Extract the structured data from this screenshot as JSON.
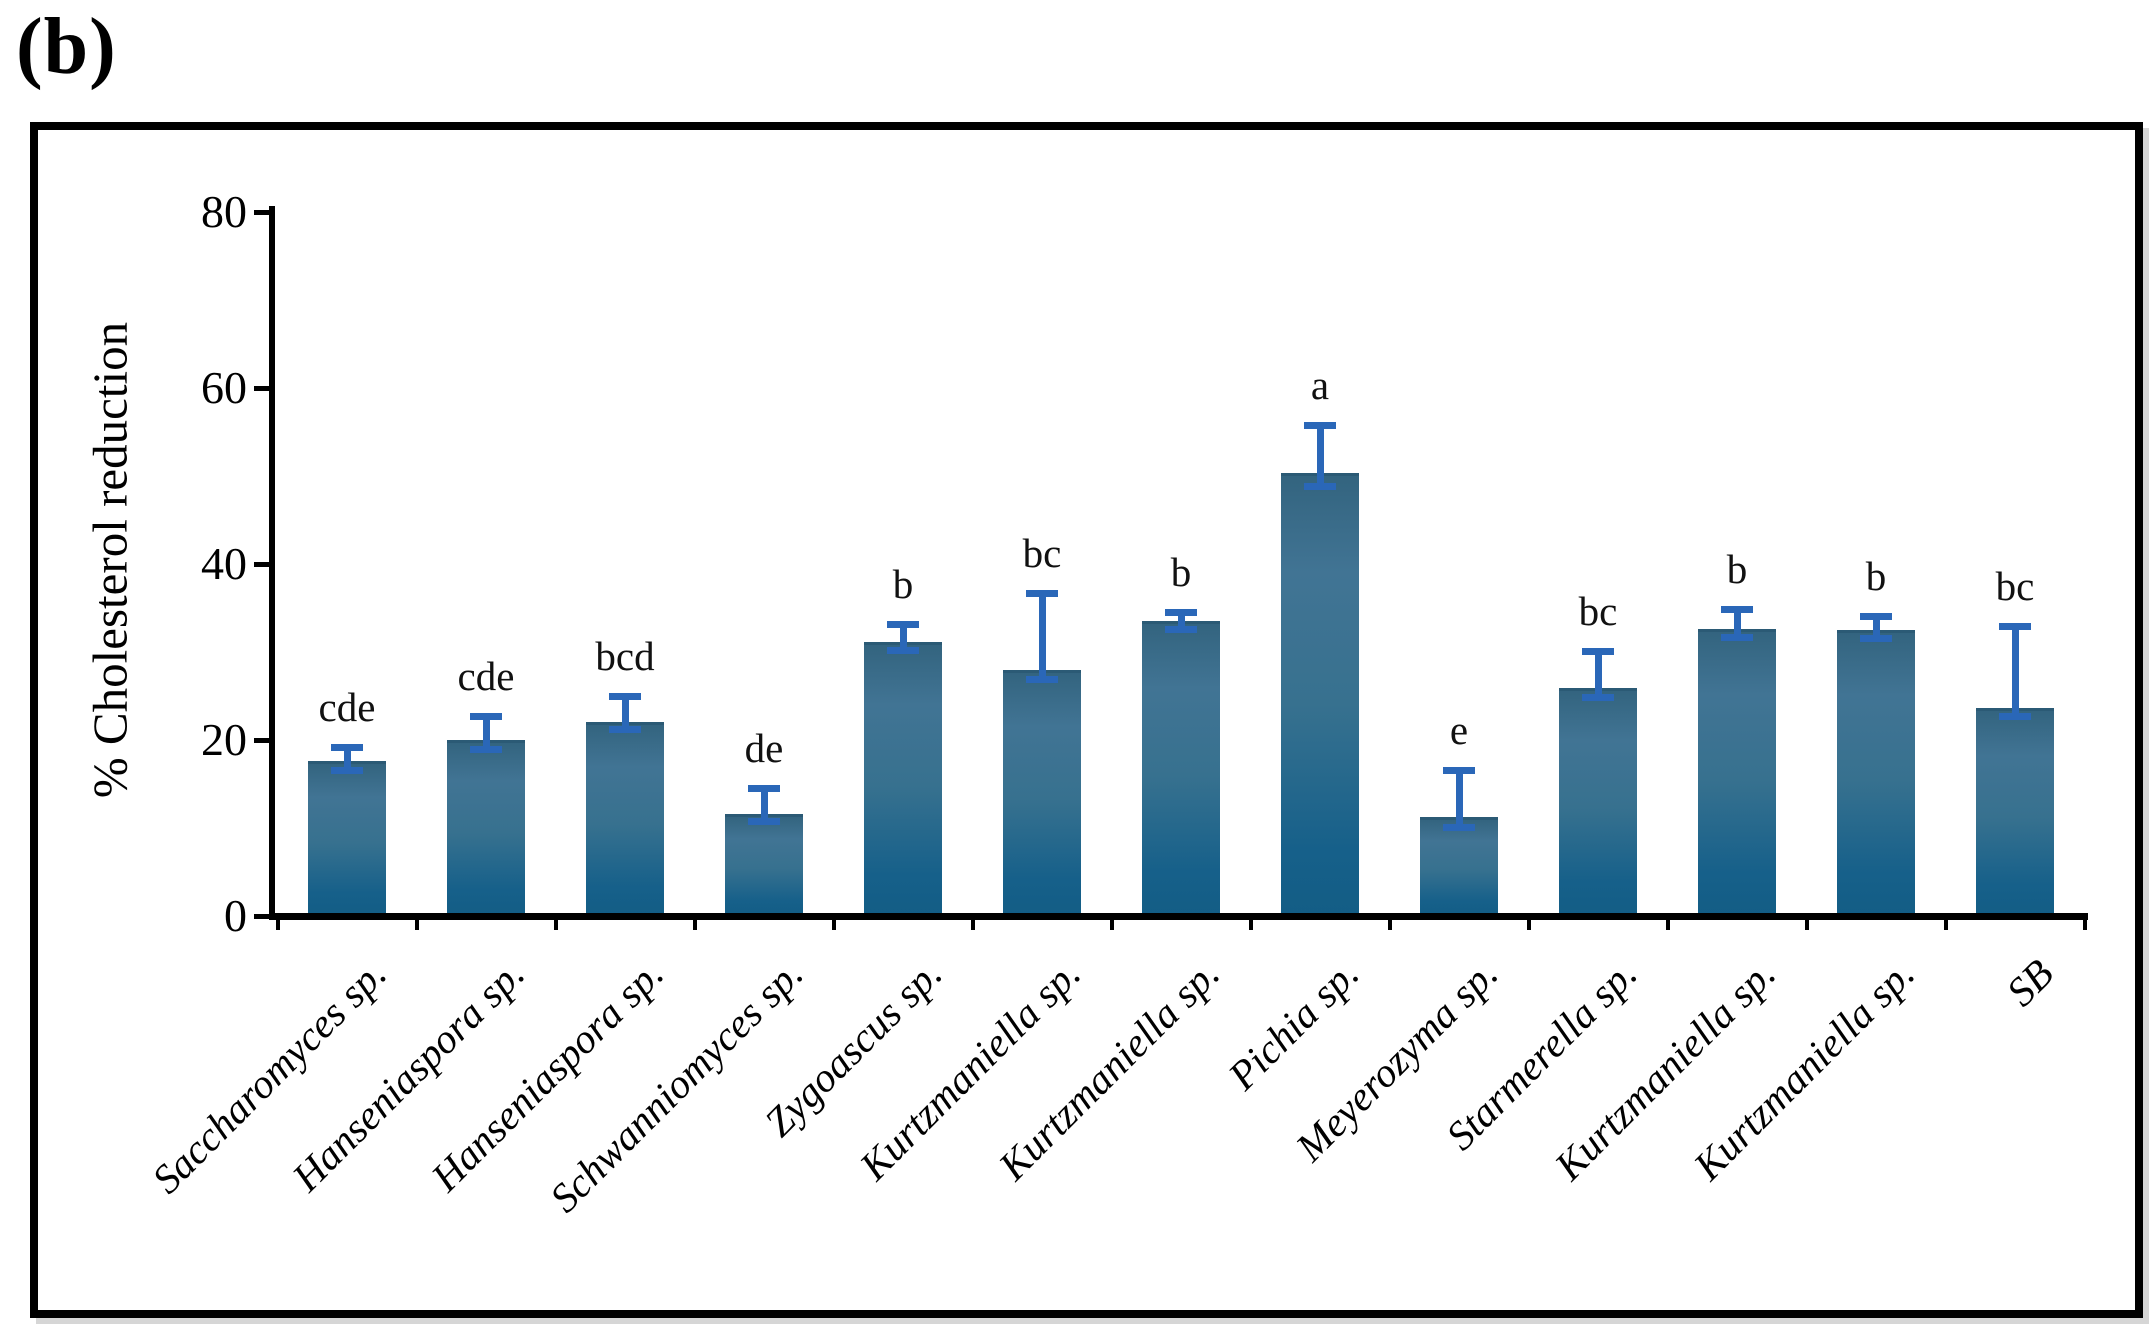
{
  "panel_label": "(b)",
  "colors": {
    "bar_top": "#33647f",
    "bar_mid": "#417494",
    "bar_bottom": "#135d85",
    "error_bar": "#2a67b8",
    "axis": "#000000",
    "background": "#ffffff"
  },
  "y_axis": {
    "title": "% Cholesterol reduction",
    "tick_labels": [
      "80",
      "60",
      "40",
      "20",
      "0"
    ],
    "tick_values": [
      80,
      60,
      40,
      20,
      0
    ]
  },
  "chart_data": {
    "type": "bar",
    "title": "",
    "xlabel": "",
    "ylabel": "% Cholesterol reduction",
    "ylim": [
      0,
      80
    ],
    "grid": false,
    "legend": "none",
    "categories": [
      "Saccharomyces sp.",
      "Hanseniaspora sp.",
      "Hanseniaspora sp.",
      "Schwanniomyces sp.",
      "Zygoascus sp.",
      "Kurtzmaniella sp.",
      "Kurtzmaniella sp.",
      "Pichia sp.",
      "Meyerozyma sp.",
      "Starmerella sp.",
      "Kurtzmaniella sp.",
      "Kurtzmaniella sp.",
      "SB"
    ],
    "values": [
      17.6,
      20.0,
      22.1,
      11.6,
      31.1,
      28.0,
      33.5,
      50.3,
      11.2,
      25.9,
      32.6,
      32.5,
      23.6
    ],
    "error_up": [
      1.6,
      2.7,
      2.9,
      2.9,
      2.1,
      8.7,
      1.0,
      5.5,
      5.4,
      4.2,
      2.3,
      1.6,
      9.4
    ],
    "error_down": [
      1.0,
      1.0,
      0.8,
      0.8,
      0.9,
      1.1,
      0.9,
      1.4,
      1.1,
      1.0,
      0.9,
      0.9,
      0.9
    ],
    "sig_letters": [
      "cde",
      "cde",
      "bcd",
      "de",
      "b",
      "bc",
      "b",
      "a",
      "e",
      "bc",
      "b",
      "b",
      "bc"
    ]
  }
}
